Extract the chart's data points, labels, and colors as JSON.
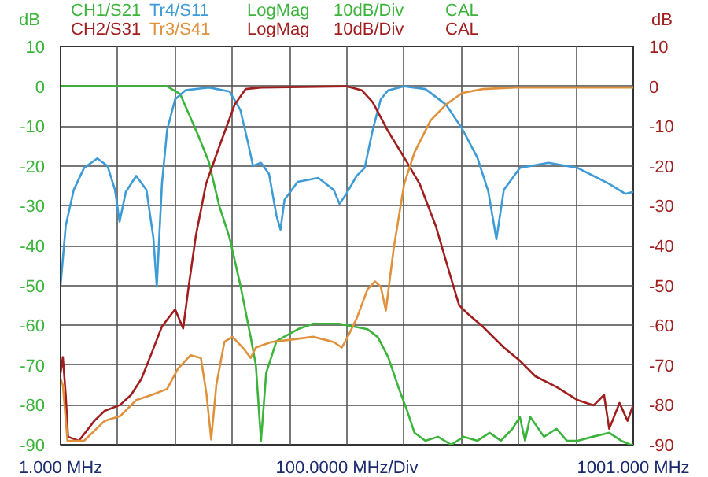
{
  "chart_data": {
    "type": "line",
    "xlabel": "100.0000 MHz/Div",
    "ylabel": "dB",
    "y2label": "dB",
    "xlim": [
      1,
      1001
    ],
    "xticks": [
      {
        "value": 1,
        "label": "1.000 MHz"
      },
      {
        "value": 101,
        "label": null
      },
      {
        "value": 201,
        "label": null
      },
      {
        "value": 301,
        "label": null
      },
      {
        "value": 401,
        "label": null
      },
      {
        "value": 501,
        "label": null
      },
      {
        "value": 601,
        "label": null
      },
      {
        "value": 701,
        "label": null
      },
      {
        "value": 801,
        "label": null
      },
      {
        "value": 901,
        "label": null
      },
      {
        "value": 1001,
        "label": "1001.000 MHz"
      }
    ],
    "ylim": [
      -90,
      10
    ],
    "yticks": [
      10,
      0,
      -10,
      -20,
      -30,
      -40,
      -50,
      -60,
      -70,
      -80,
      -90
    ],
    "y2lim": [
      -90,
      10
    ],
    "y2ticks": [
      10,
      0,
      -10,
      -20,
      -30,
      -40,
      -50,
      -60,
      -70,
      -80,
      -90
    ],
    "grid": true,
    "annotations": [
      "LogMag",
      "10dB/Div",
      "CAL",
      "LogMag",
      "10dB/Div",
      "CAL"
    ],
    "series": [
      {
        "name": "CH1/S21",
        "color": "#3cb43c",
        "x": [
          1,
          100,
          187,
          210,
          242,
          260,
          278,
          296,
          315,
          333,
          342,
          351,
          360,
          378,
          415,
          442,
          487,
          537,
          555,
          573,
          592,
          605,
          619,
          638,
          660,
          683,
          705,
          729,
          750,
          770,
          790,
          803,
          812,
          821,
          845,
          867,
          885,
          904,
          930,
          959,
          980,
          996,
          1001
        ],
        "values": [
          0,
          0,
          0,
          -2,
          -12.6,
          -19,
          -30,
          -38,
          -50,
          -63,
          -70,
          -89,
          -72,
          -64,
          -61,
          -59.6,
          -59.6,
          -61,
          -63,
          -68,
          -76,
          -81,
          -87,
          -89,
          -88,
          -90,
          -88,
          -89,
          -87,
          -89,
          -86,
          -83,
          -89,
          -83,
          -88,
          -86,
          -89,
          -89,
          -88,
          -87,
          -89,
          -90,
          -90
        ]
      },
      {
        "name": "Tr4/S11",
        "color": "#3d9bd6",
        "x": [
          1,
          10,
          24,
          42,
          65,
          83,
          96,
          104,
          115,
          133,
          151,
          163,
          169,
          178,
          187,
          201,
          219,
          260,
          296,
          315,
          328,
          337,
          351,
          365,
          378,
          385,
          392,
          415,
          451,
          478,
          488,
          500,
          518,
          532,
          546,
          560,
          573,
          601,
          638,
          674,
          702,
          729,
          748,
          762,
          775,
          803,
          853,
          904,
          959,
          987,
          1001
        ],
        "values": [
          -50,
          -35,
          -26,
          -20.5,
          -18.1,
          -20,
          -26,
          -34,
          -26.5,
          -22.5,
          -26,
          -38,
          -50.3,
          -24.5,
          -11,
          -3.3,
          -1,
          -0.3,
          -1.3,
          -6,
          -14,
          -20,
          -19.2,
          -22,
          -32.5,
          -36,
          -28.5,
          -24,
          -23,
          -26,
          -29.5,
          -27,
          -22.5,
          -20.5,
          -11,
          -3.3,
          -1,
          0,
          -0.7,
          -4.6,
          -10.6,
          -18,
          -26.5,
          -38.4,
          -26,
          -20.5,
          -19.2,
          -20.5,
          -24.5,
          -27,
          -26.5
        ]
      },
      {
        "name": "CH2/S31",
        "color": "#a01e1e",
        "axis": "y2",
        "x": [
          1,
          5,
          10,
          14,
          33,
          60,
          78,
          105,
          124,
          142,
          160,
          178,
          201,
          215,
          224,
          237,
          255,
          278,
          305,
          324,
          351,
          500,
          527,
          546,
          573,
          601,
          628,
          656,
          683,
          697,
          711,
          738,
          775,
          803,
          830,
          867,
          904,
          932,
          950,
          959,
          977,
          991,
          1001
        ],
        "values": [
          -72,
          -68,
          -77.5,
          -88,
          -89,
          -84,
          -81.5,
          -80,
          -77.5,
          -73.5,
          -67,
          -60.3,
          -56,
          -60.8,
          -51,
          -37.7,
          -24.5,
          -15.2,
          -4.6,
          -0.7,
          -0.3,
          0,
          -1,
          -4,
          -11.3,
          -17.9,
          -24.5,
          -35,
          -48.3,
          -55,
          -57,
          -60.3,
          -65.6,
          -68.9,
          -72.8,
          -75.5,
          -78.8,
          -80.1,
          -77.5,
          -86,
          -79.5,
          -84,
          -80
        ]
      },
      {
        "name": "Tr3/S41",
        "color": "#e0913c",
        "axis": "y2",
        "x": [
          1,
          5,
          13,
          42,
          78,
          105,
          133,
          160,
          187,
          206,
          228,
          246,
          256,
          264,
          273,
          287,
          301,
          319,
          333,
          342,
          369,
          405,
          442,
          478,
          492,
          500,
          518,
          537,
          550,
          560,
          569,
          583,
          601,
          619,
          647,
          674,
          702,
          738,
          795,
          1001
        ],
        "values": [
          -73.5,
          -75,
          -89,
          -89,
          -84,
          -82.8,
          -78.8,
          -77.5,
          -76,
          -70.9,
          -67.5,
          -68.2,
          -77.5,
          -88.7,
          -75,
          -64.2,
          -62.9,
          -65.6,
          -68.2,
          -65.6,
          -64.2,
          -63.6,
          -62.9,
          -64.2,
          -65.6,
          -63.6,
          -58.3,
          -51,
          -49,
          -50.3,
          -56.3,
          -40.4,
          -24.5,
          -16.6,
          -8.6,
          -4.6,
          -1.7,
          -0.7,
          -0.3,
          -0.3
        ]
      }
    ]
  }
}
